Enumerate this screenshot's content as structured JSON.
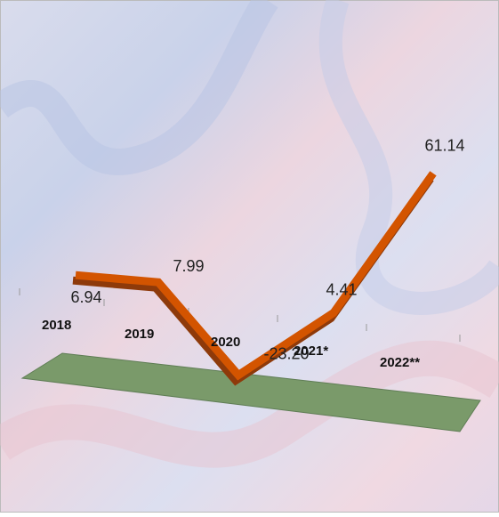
{
  "chart_data": {
    "type": "line",
    "categories": [
      "2018",
      "2019",
      "2020",
      "2021*",
      "2022**"
    ],
    "values": [
      6.94,
      7.99,
      -23.2,
      4.41,
      61.14
    ],
    "value_labels": [
      "6.94",
      "7.99",
      "-23.20",
      "4.41",
      "61.14"
    ],
    "color": "#d35400"
  }
}
